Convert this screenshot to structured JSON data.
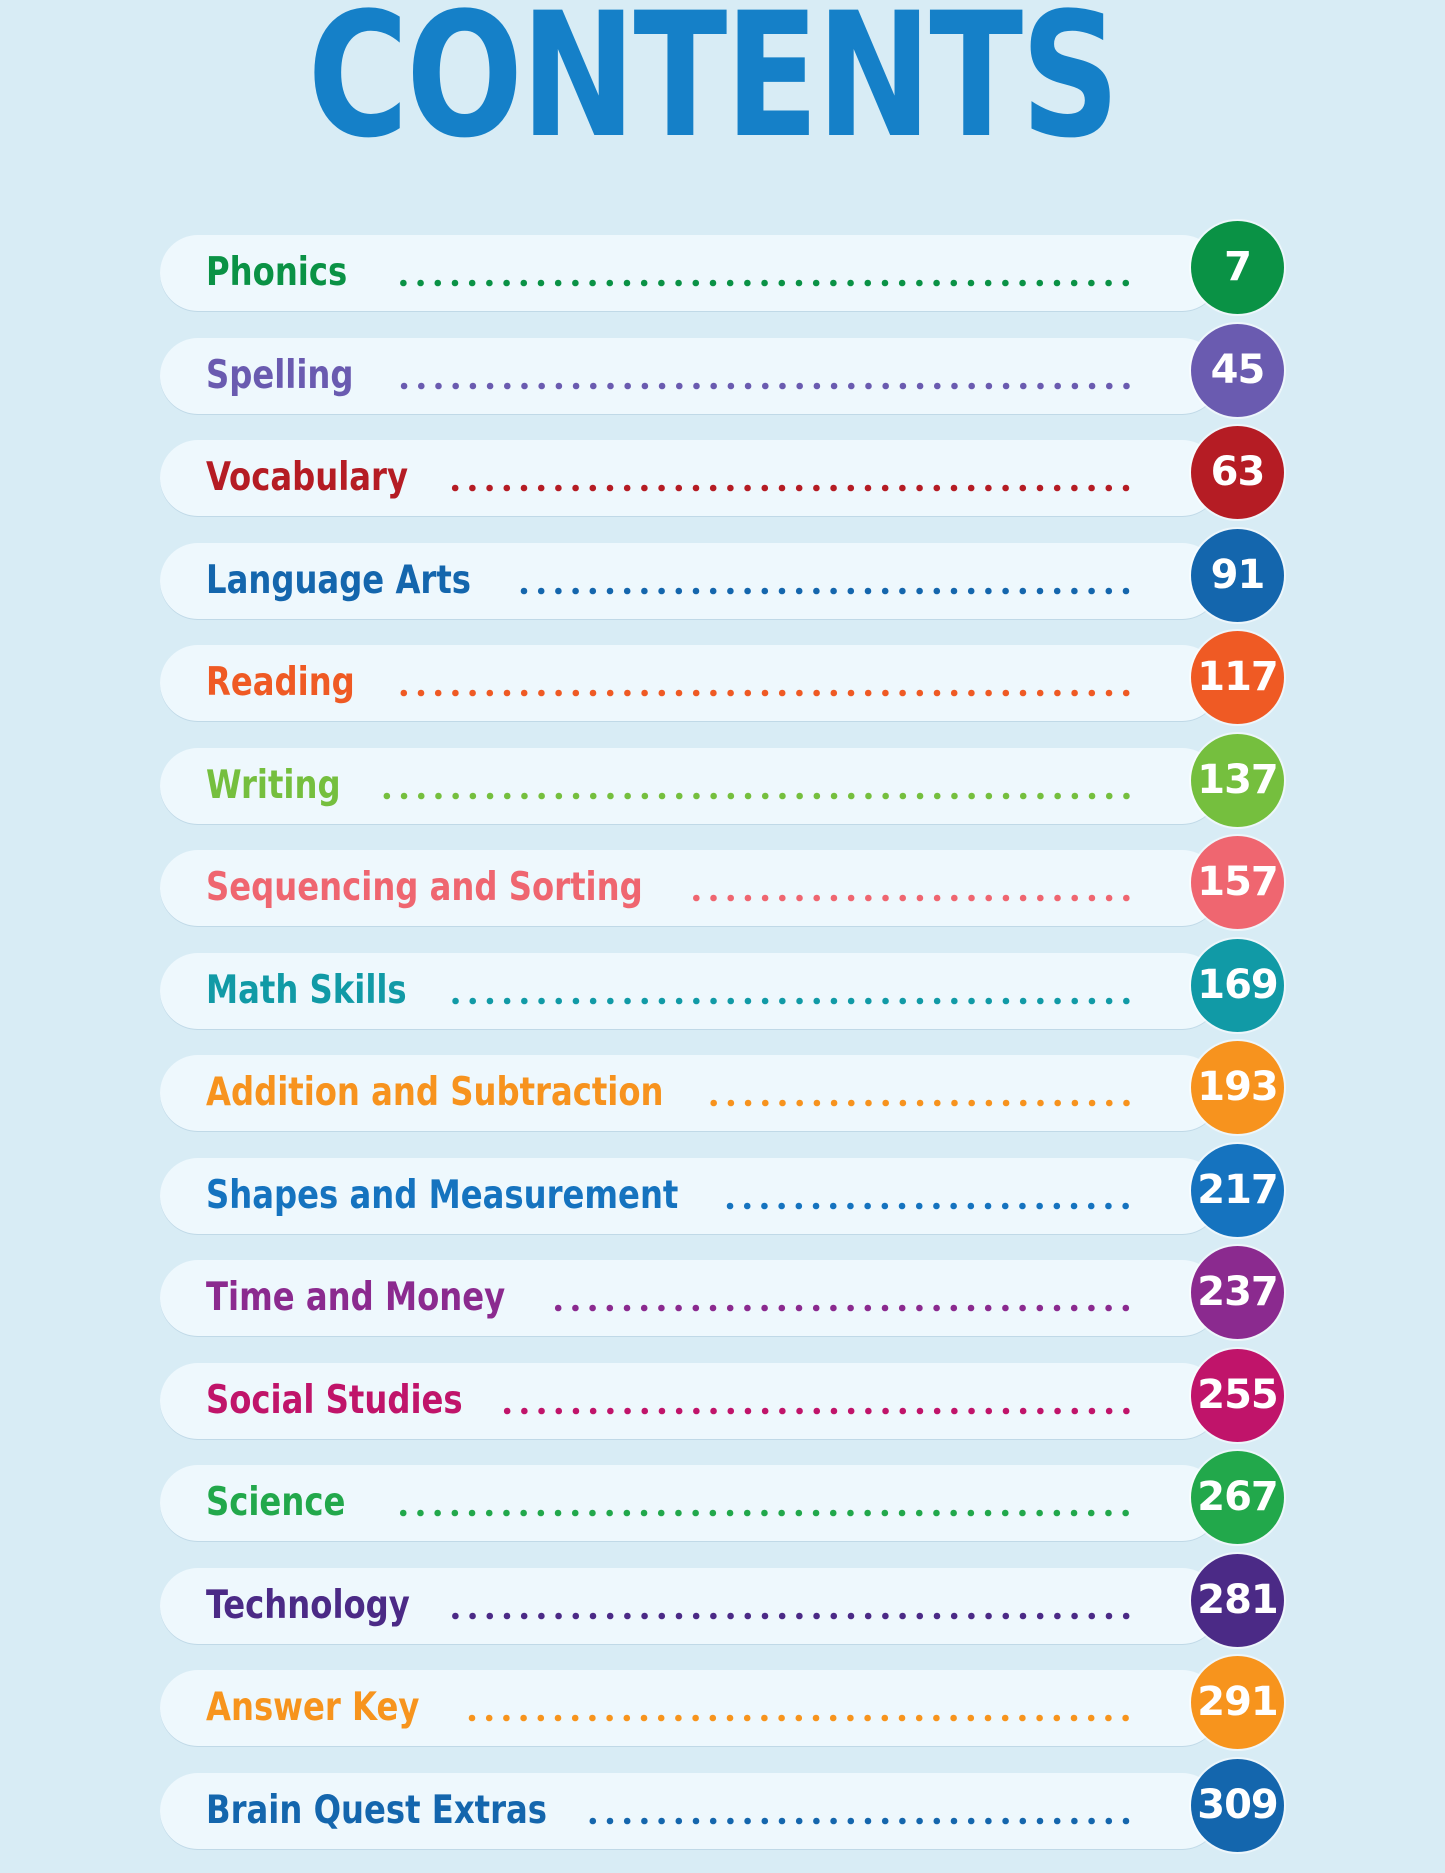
{
  "title": "CONTENTS",
  "entries": [
    {
      "label": "Phonics",
      "page": "7",
      "color": "#0a9245"
    },
    {
      "label": "Spelling",
      "page": "45",
      "color": "#6a5bb0"
    },
    {
      "label": "Vocabulary",
      "page": "63",
      "color": "#b51c24"
    },
    {
      "label": "Language Arts",
      "page": "91",
      "color": "#1466ad"
    },
    {
      "label": "Reading",
      "page": "117",
      "color": "#ef5a24"
    },
    {
      "label": "Writing",
      "page": "137",
      "color": "#75bf3e"
    },
    {
      "label": "Sequencing and Sorting",
      "page": "157",
      "color": "#ef6670"
    },
    {
      "label": "Math Skills",
      "page": "169",
      "color": "#119aa6"
    },
    {
      "label": "Addition and Subtraction",
      "page": "193",
      "color": "#f7931e"
    },
    {
      "label": "Shapes and Measurement",
      "page": "217",
      "color": "#1573bf"
    },
    {
      "label": "Time and Money",
      "page": "237",
      "color": "#8b2a8f"
    },
    {
      "label": "Social Studies",
      "page": "255",
      "color": "#c0146a"
    },
    {
      "label": "Science",
      "page": "267",
      "color": "#22a84b"
    },
    {
      "label": "Technology",
      "page": "281",
      "color": "#4b2a86"
    },
    {
      "label": "Answer Key",
      "page": "291",
      "color": "#f7941d"
    },
    {
      "label": "Brain Quest Extras",
      "page": "309",
      "color": "#1466ad"
    }
  ]
}
